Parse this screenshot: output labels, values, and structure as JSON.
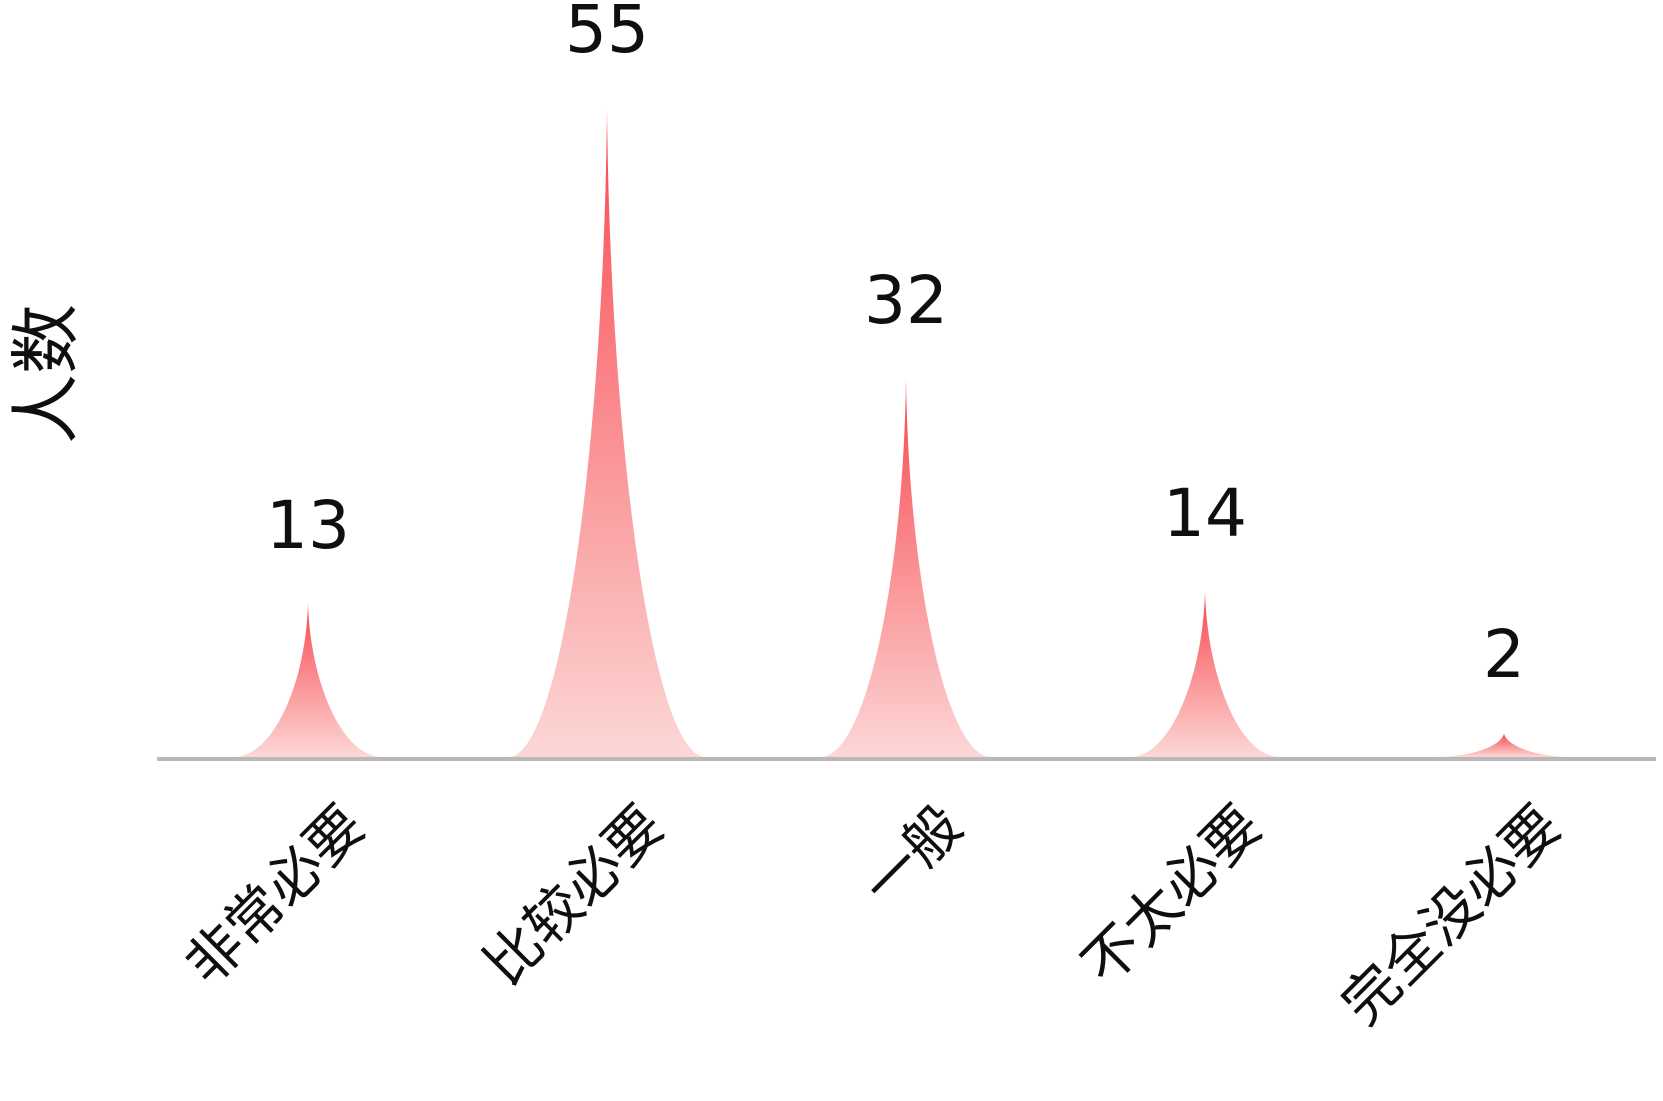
{
  "chart_data": {
    "type": "bar",
    "bar_shape": "concave-peak-spike",
    "title": "",
    "xlabel": "",
    "ylabel": "人数",
    "categories": [
      "非常必要",
      "比较必要",
      "一般",
      "不太必要",
      "完全没必要"
    ],
    "values": [
      13,
      55,
      32,
      14,
      2
    ],
    "value_labels_shown": true,
    "ylim": [
      0,
      57
    ],
    "grid": false,
    "legend": "none",
    "x_label_rotation_deg": -45,
    "colors": {
      "peak_gradient_top": "#f8484f",
      "peak_gradient_bottom": "#fcd7d6",
      "axis_line": "#b9b9b9",
      "label_text": "#0f0f0f"
    }
  }
}
